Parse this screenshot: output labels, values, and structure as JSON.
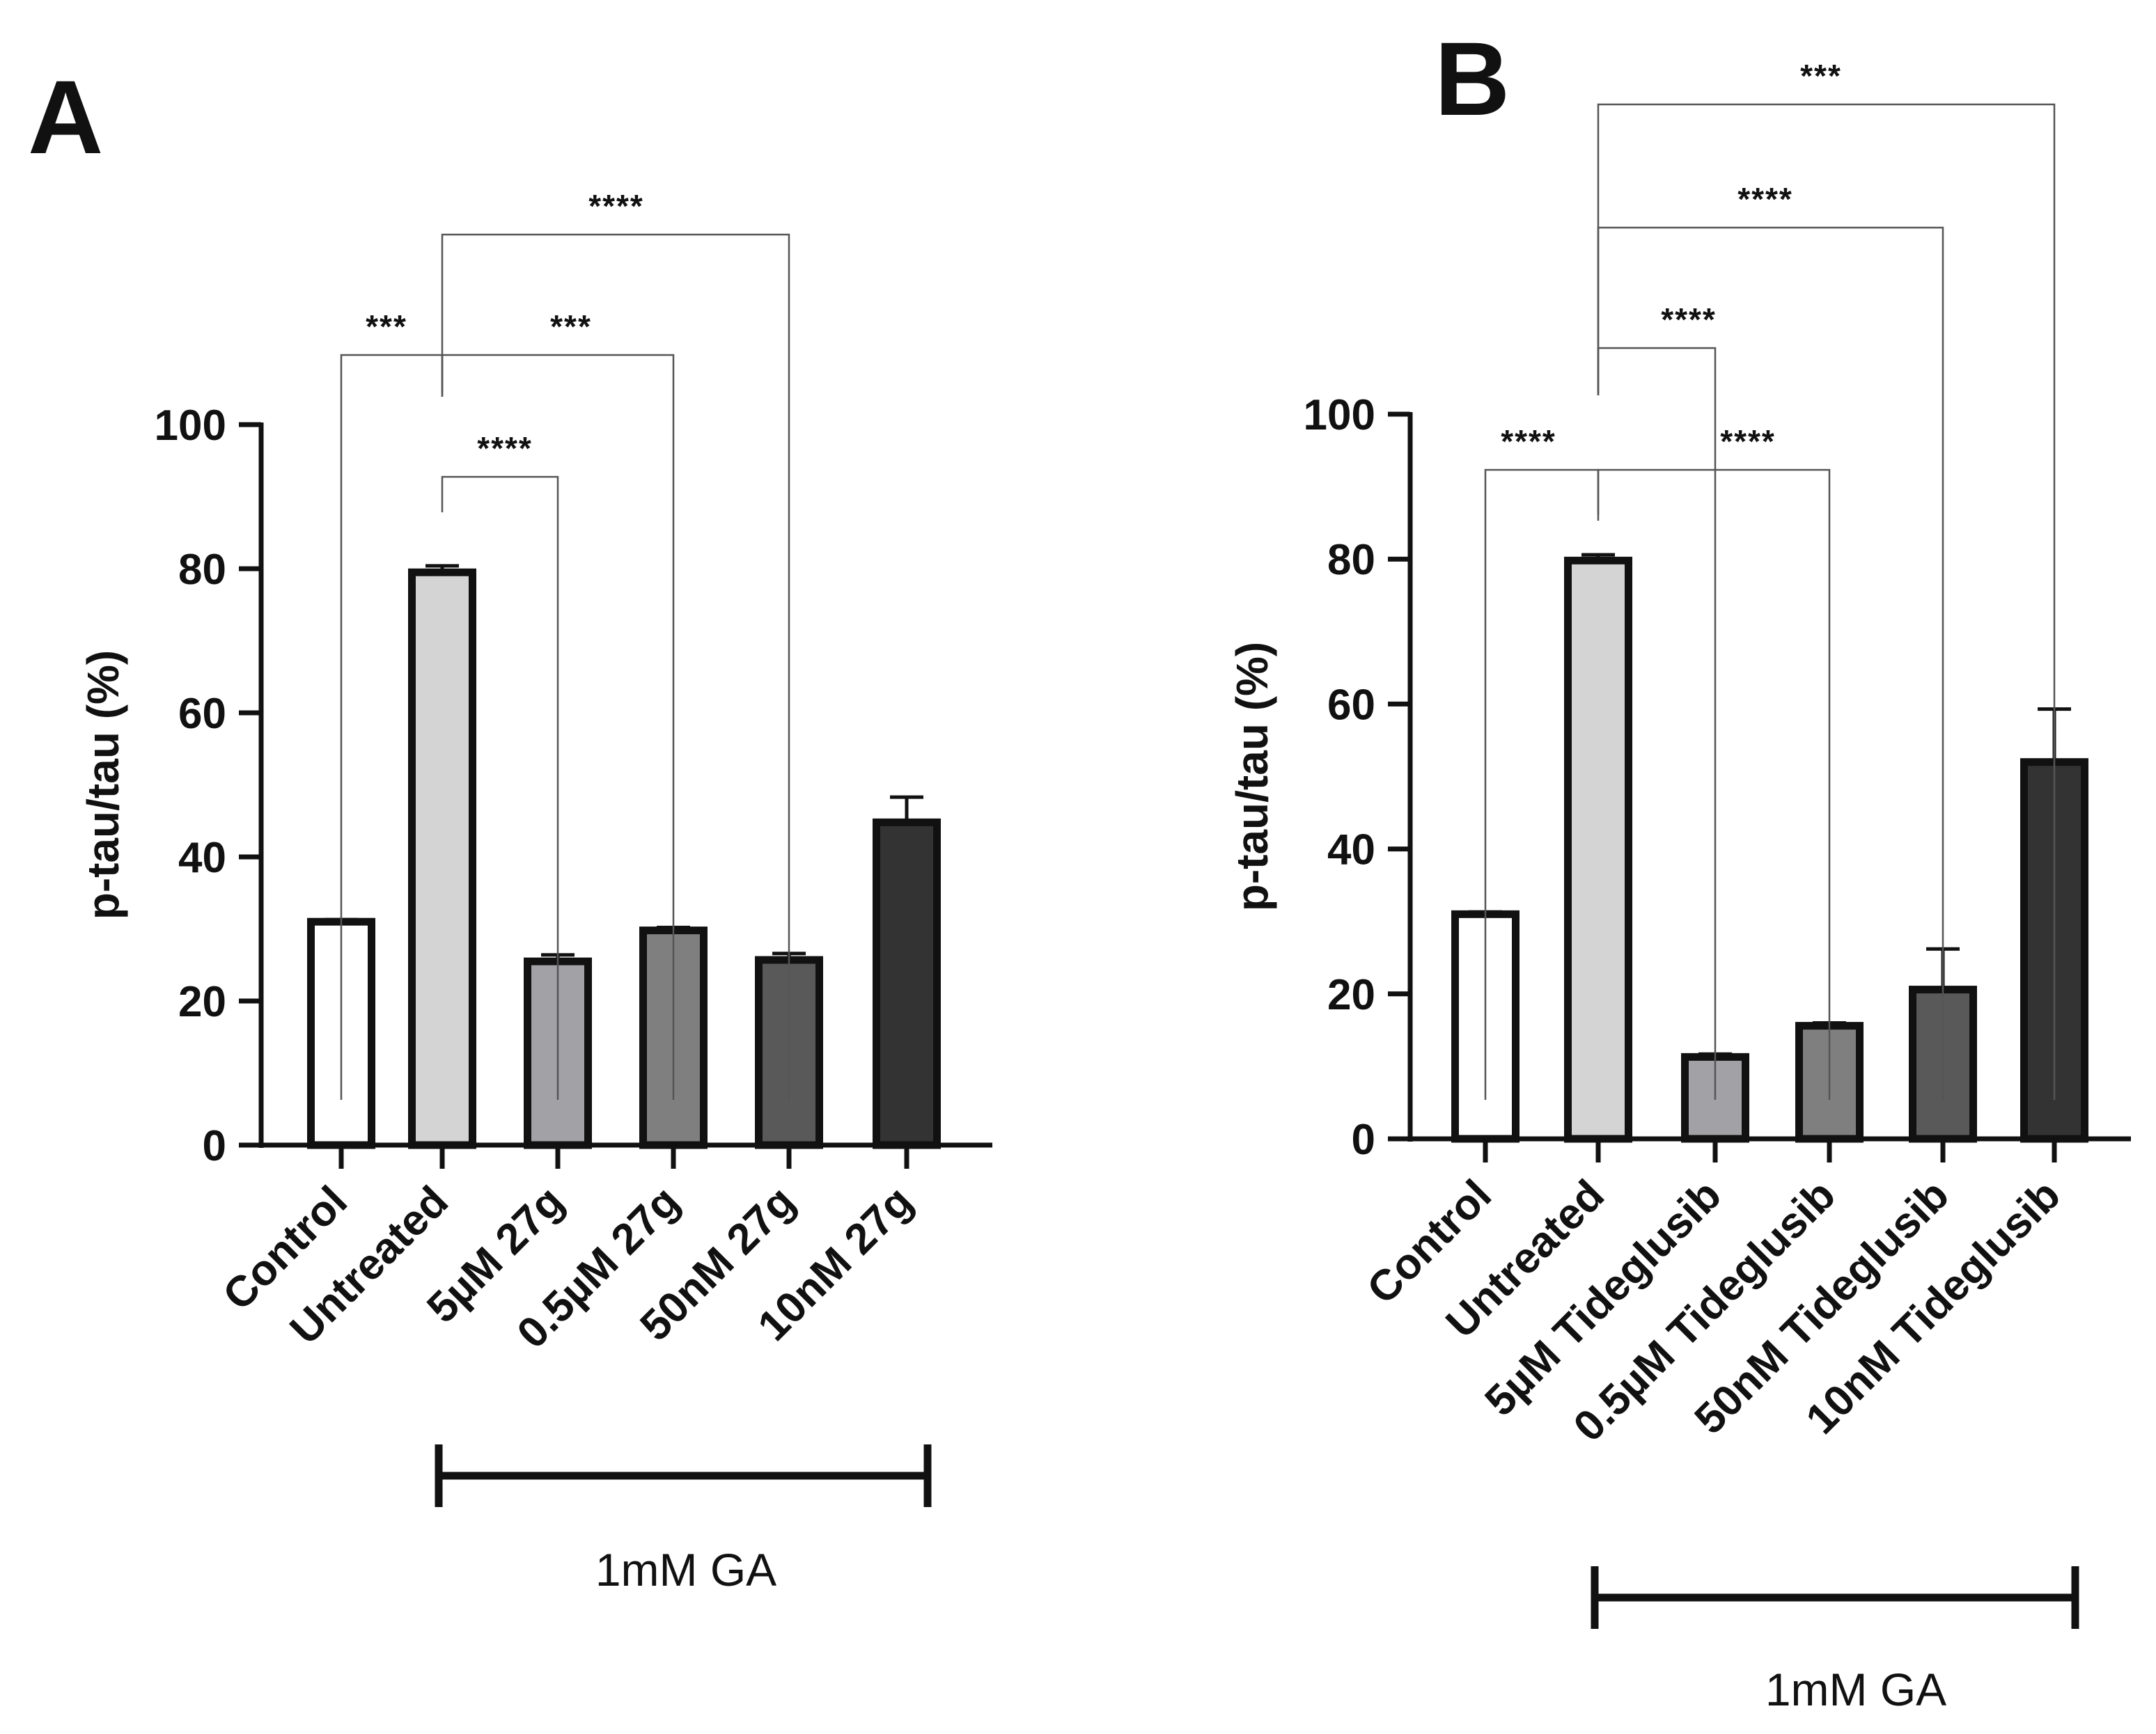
{
  "chart_data": [
    {
      "panel": "A",
      "type": "bar",
      "title": "",
      "ylabel": "p-tau/tau (%)",
      "xlabel": "",
      "ylim": [
        0,
        100
      ],
      "yticks": [
        "0",
        "20",
        "40",
        "60",
        "80",
        "100"
      ],
      "categories": [
        "Control",
        "Untreated",
        "5µM 27g",
        "0.5µM 27g",
        "50nM 27g",
        "10nM 27g"
      ],
      "values": [
        31,
        79.5,
        25.5,
        29.8,
        25.7,
        44.8
      ],
      "errors": [
        0.3,
        0.9,
        0.9,
        0.4,
        0.9,
        3.5
      ],
      "colors": [
        "#ffffff",
        "#d4d4d4",
        "#a2a2a6",
        "#7f7f7f",
        "#595959",
        "#333333"
      ],
      "group_bracket": {
        "label": "1mM GA",
        "from": 1,
        "to": 5
      },
      "significance": [
        {
          "from": 0,
          "to": 1,
          "label": "***"
        },
        {
          "from": 1,
          "to": 3,
          "label": "***"
        },
        {
          "from": 1,
          "to": 2,
          "label": "****"
        },
        {
          "from": 1,
          "to": 4,
          "label": "****"
        }
      ]
    },
    {
      "panel": "B",
      "type": "bar",
      "title": "",
      "ylabel": "p-tau/tau (%)",
      "xlabel": "",
      "ylim": [
        0,
        100
      ],
      "yticks": [
        "0",
        "20",
        "40",
        "60",
        "80",
        "100"
      ],
      "categories": [
        "Control",
        "Untreated",
        "5µM Tideglusib",
        "0.5µM Tideglusib",
        "50nM Tideglusib",
        "10nM Tideglusib"
      ],
      "values": [
        31,
        79.8,
        11.3,
        15.6,
        20.6,
        52
      ],
      "errors": [
        0.3,
        0.8,
        0.4,
        0.4,
        5.6,
        7.3
      ],
      "colors": [
        "#ffffff",
        "#d4d4d4",
        "#a2a2a6",
        "#7f7f7f",
        "#595959",
        "#333333"
      ],
      "group_bracket": {
        "label": "1mM GA",
        "from": 1,
        "to": 5
      },
      "significance": [
        {
          "from": 0,
          "to": 1,
          "label": "****"
        },
        {
          "from": 1,
          "to": 3,
          "label": "****"
        },
        {
          "from": 1,
          "to": 2,
          "label": "****"
        },
        {
          "from": 1,
          "to": 4,
          "label": "****"
        },
        {
          "from": 1,
          "to": 5,
          "label": "***"
        }
      ]
    }
  ]
}
